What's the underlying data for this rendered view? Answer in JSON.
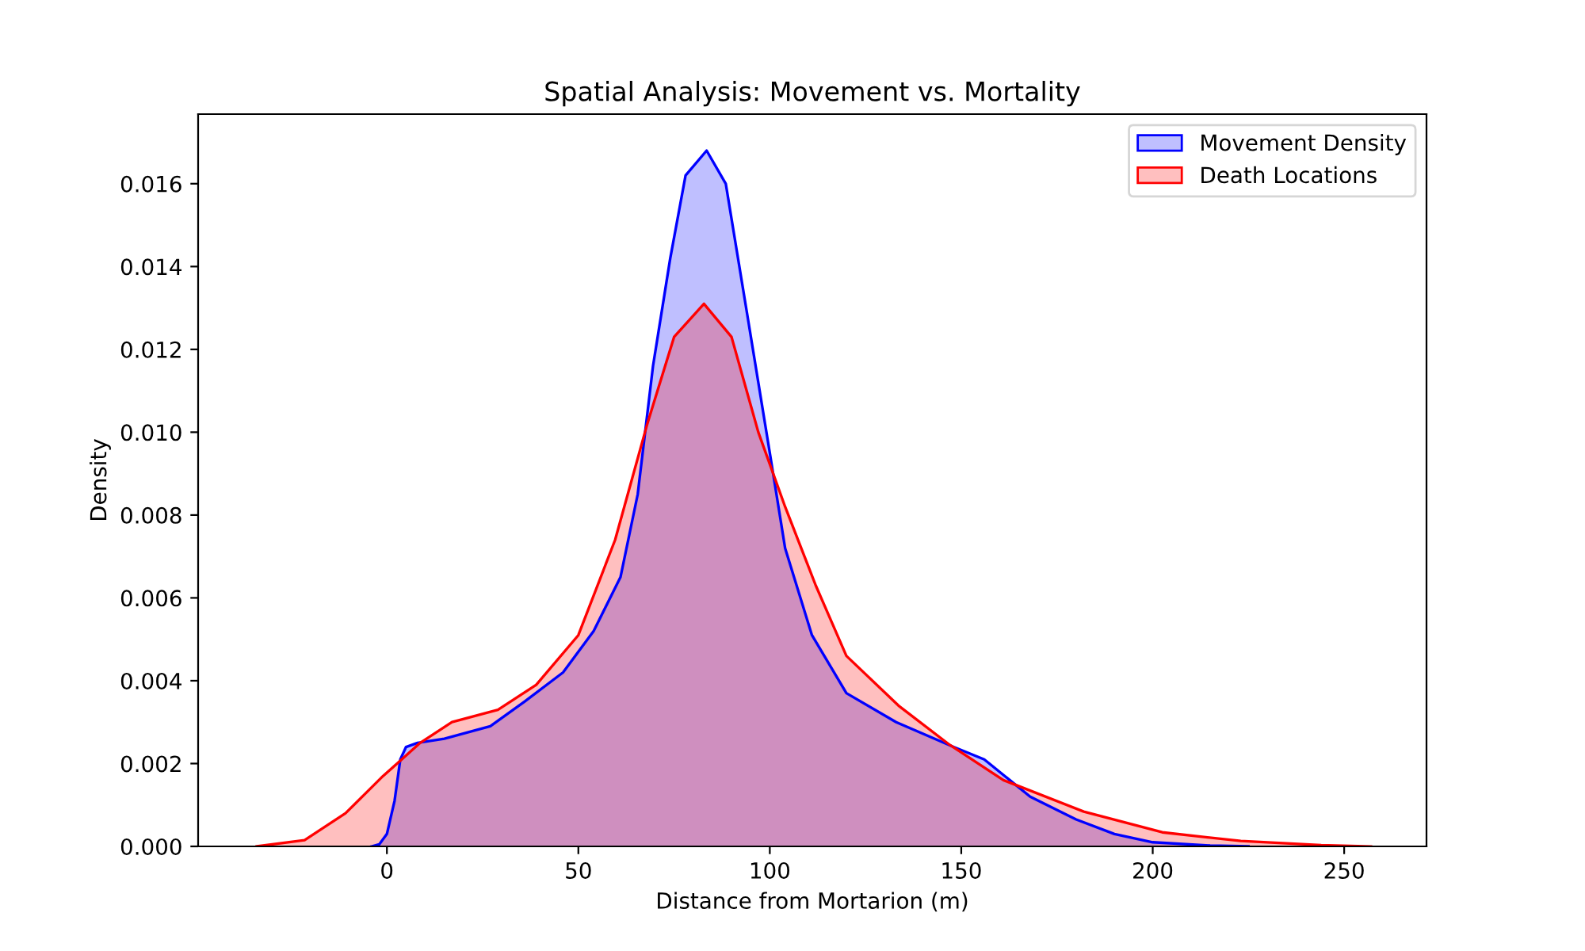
{
  "chart_data": {
    "type": "area",
    "title": "Spatial Analysis: Movement vs. Mortality",
    "xlabel": "Distance from Mortarion (m)",
    "ylabel": "Density",
    "xlim": [
      -49.3,
      271.5
    ],
    "ylim": [
      0,
      0.01768
    ],
    "xticks": [
      0,
      50,
      100,
      150,
      200,
      250
    ],
    "yticks": [
      {
        "value": 0,
        "label": "0.000"
      },
      {
        "value": 0.002,
        "label": "0.002"
      },
      {
        "value": 0.004,
        "label": "0.004"
      },
      {
        "value": 0.006,
        "label": "0.006"
      },
      {
        "value": 0.008,
        "label": "0.008"
      },
      {
        "value": 0.01,
        "label": "0.010"
      },
      {
        "value": 0.012,
        "label": "0.012"
      },
      {
        "value": 0.014,
        "label": "0.014"
      },
      {
        "value": 0.016,
        "label": "0.016"
      }
    ],
    "grid": false,
    "legend": "top right",
    "series": [
      {
        "name": "Movement Density",
        "color": "#0000ff",
        "x": [
          -4,
          -2,
          0,
          2,
          3.5,
          5,
          8,
          15,
          27,
          36,
          46,
          54,
          61,
          65.5,
          69.5,
          74,
          78,
          83.5,
          88.5,
          94,
          100,
          104,
          111,
          120,
          133,
          148,
          156,
          168,
          180,
          190,
          200,
          215,
          225
        ],
        "values": [
          0,
          5e-05,
          0.0003,
          0.0011,
          0.0021,
          0.0024,
          0.0025,
          0.0026,
          0.0029,
          0.0035,
          0.0042,
          0.0052,
          0.0065,
          0.0085,
          0.0116,
          0.0142,
          0.0162,
          0.0168,
          0.016,
          0.0129,
          0.0095,
          0.0072,
          0.0051,
          0.0037,
          0.003,
          0.0024,
          0.0021,
          0.0012,
          0.00065,
          0.0003,
          0.0001,
          2e-05,
          0
        ]
      },
      {
        "name": "Death Locations",
        "color": "#ff0000",
        "x": [
          -34,
          -21.5,
          -10.8,
          -1,
          8.7,
          17,
          29,
          39,
          50,
          59.6,
          68,
          75,
          82.8,
          90,
          97,
          104,
          112,
          120,
          133.6,
          147,
          161,
          182,
          202.5,
          223,
          244,
          257
        ],
        "values": [
          0,
          0.00015,
          0.0008,
          0.0017,
          0.0025,
          0.003,
          0.0033,
          0.0039,
          0.0051,
          0.0074,
          0.0102,
          0.0123,
          0.0131,
          0.0123,
          0.01,
          0.0082,
          0.0063,
          0.0046,
          0.0034,
          0.00245,
          0.0016,
          0.00084,
          0.00034,
          0.00013,
          3e-05,
          0
        ]
      }
    ]
  }
}
